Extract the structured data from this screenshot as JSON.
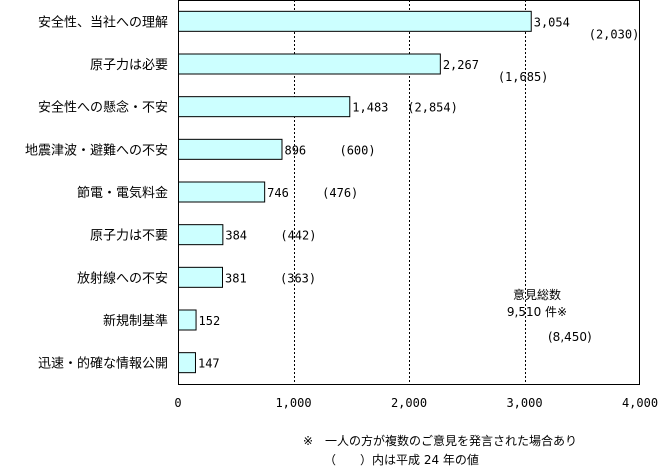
{
  "chart_data": {
    "type": "bar",
    "orientation": "horizontal",
    "categories": [
      "安全性、当社への理解",
      "原子力は必要",
      "安全性への懸念・不安",
      "地震津波・避難への不安",
      "節電・電気料金",
      "原子力は不要",
      "放射線への不安",
      "新規制基準",
      "迅速・的確な情報公開"
    ],
    "values": [
      3054,
      2267,
      1483,
      896,
      746,
      384,
      381,
      152,
      147
    ],
    "value_labels": [
      "3,054",
      "2,267",
      "1,483",
      "896",
      "746",
      "384",
      "381",
      "152",
      "147"
    ],
    "prev_labels": [
      "(2,030)",
      "(1,685)",
      "(2,854)",
      "(600)",
      "(476)",
      "(442)",
      "(363)",
      "",
      ""
    ],
    "xlim": [
      0,
      4000
    ],
    "xticks": [
      0,
      1000,
      2000,
      3000,
      4000
    ],
    "xtick_labels": [
      "0",
      "1,000",
      "2,000",
      "3,000",
      "4,000"
    ],
    "grid": "vertical dashed",
    "bar_color": "#ccffff",
    "total": {
      "title": "意見総数",
      "value": "9,510 件※",
      "prev": "(8,450)"
    }
  },
  "notes": {
    "line1": "※　一人の方が複数のご意見を発言された場合あり",
    "line2": "（　　）内は平成 24 年の値"
  }
}
